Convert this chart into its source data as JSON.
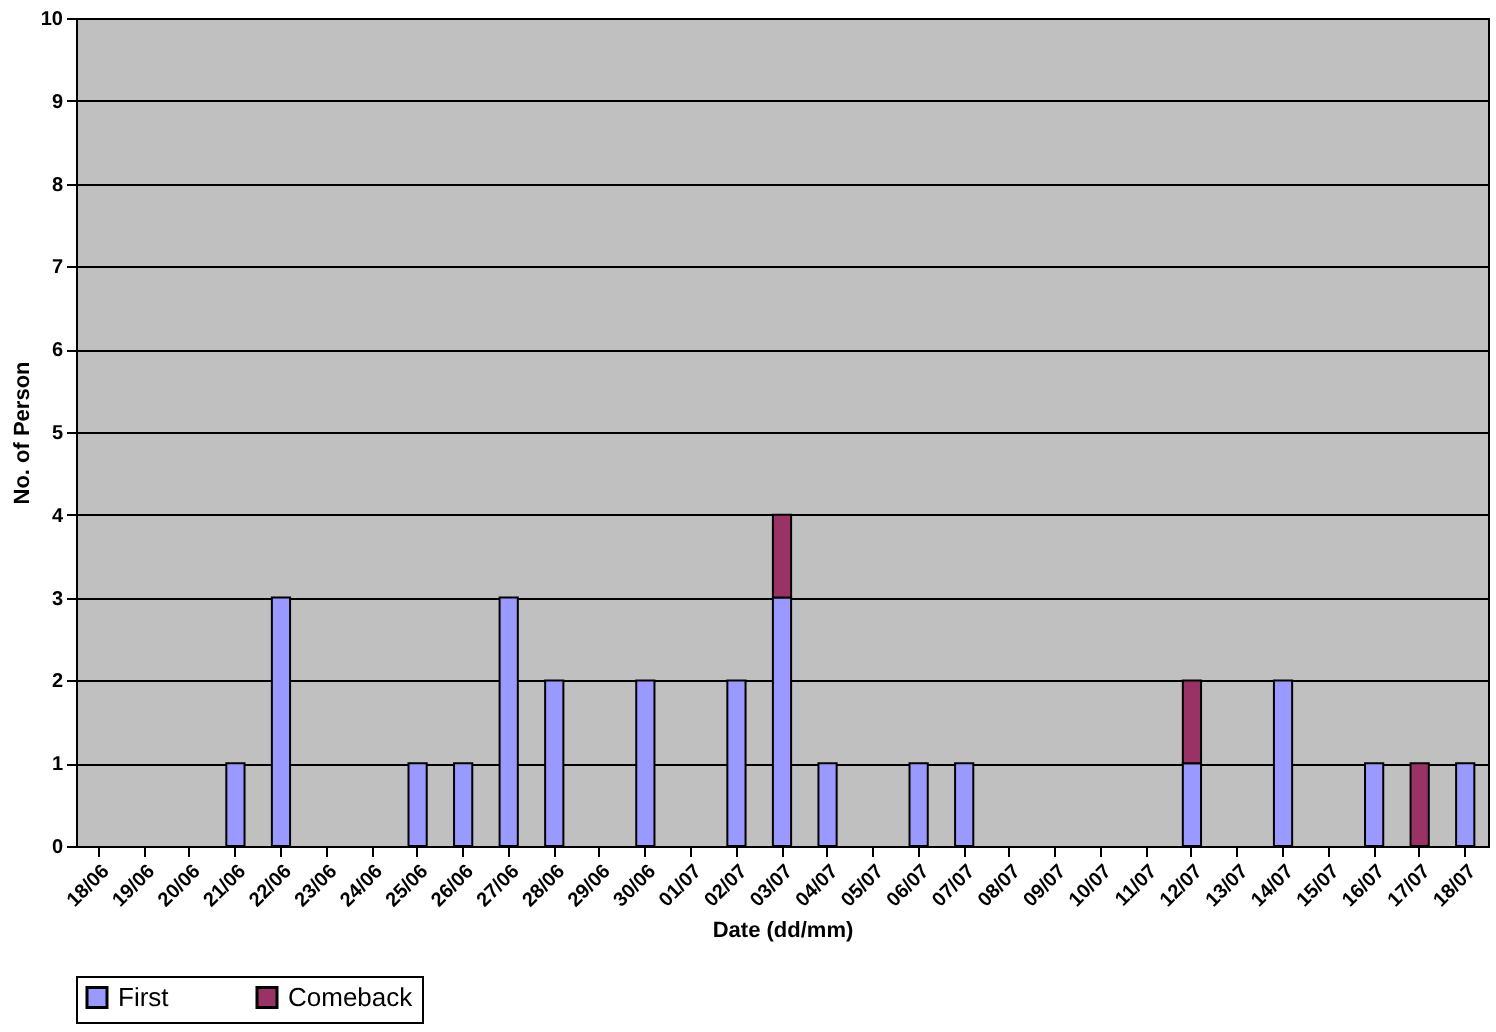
{
  "chart_data": {
    "type": "bar",
    "stacked": true,
    "xlabel": "Date (dd/mm)",
    "ylabel": "No. of Person",
    "categories": [
      "18/06",
      "19/06",
      "20/06",
      "21/06",
      "22/06",
      "23/06",
      "24/06",
      "25/06",
      "26/06",
      "27/06",
      "28/06",
      "29/06",
      "30/06",
      "01/07",
      "02/07",
      "03/07",
      "04/07",
      "05/07",
      "06/07",
      "07/07",
      "08/07",
      "09/07",
      "10/07",
      "11/07",
      "12/07",
      "13/07",
      "14/07",
      "15/07",
      "16/07",
      "17/07",
      "18/07"
    ],
    "series": [
      {
        "name": "First",
        "color": "#9999ff",
        "values": [
          null,
          null,
          null,
          1,
          3,
          null,
          null,
          1,
          1,
          3,
          2,
          null,
          2,
          null,
          2,
          3,
          1,
          null,
          1,
          1,
          null,
          null,
          null,
          null,
          1,
          null,
          2,
          null,
          1,
          null,
          1
        ]
      },
      {
        "name": "Comeback",
        "color": "#993366",
        "values": [
          null,
          null,
          null,
          null,
          null,
          null,
          null,
          null,
          null,
          null,
          null,
          null,
          null,
          null,
          null,
          1,
          null,
          null,
          null,
          null,
          null,
          null,
          null,
          null,
          1,
          null,
          null,
          null,
          null,
          1,
          null
        ]
      }
    ],
    "ylim": [
      0,
      10
    ],
    "yticks": [
      0,
      1,
      2,
      3,
      4,
      5,
      6,
      7,
      8,
      9,
      10
    ],
    "grid": "y",
    "legend": "bottom"
  }
}
